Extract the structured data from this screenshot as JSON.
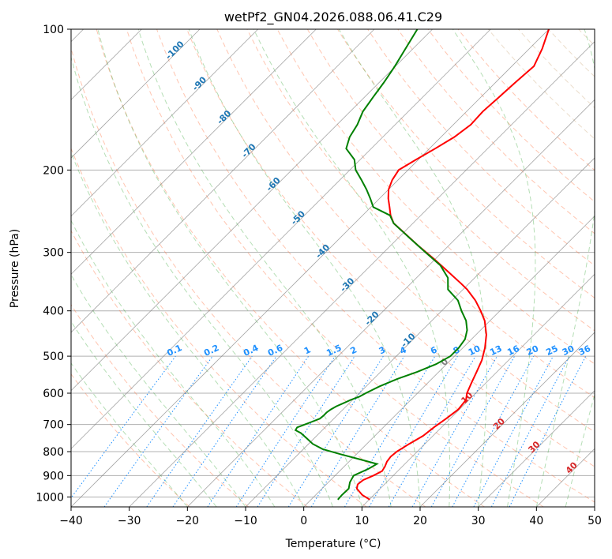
{
  "chart_data": {
    "type": "line",
    "title": "wetPf2_GN04.2026.088.06.41.C29",
    "xlabel": "Temperature (°C)",
    "ylabel": "Pressure (hPa)",
    "xlim": [
      -40,
      50
    ],
    "ylim": [
      1050,
      100
    ],
    "x_ticks": [
      -40,
      -30,
      -20,
      -10,
      0,
      10,
      20,
      30,
      40,
      50
    ],
    "x_tick_labels": [
      "−40",
      "−30",
      "−20",
      "−10",
      "0",
      "10",
      "20",
      "30",
      "40",
      "50"
    ],
    "y_ticks": [
      1000,
      900,
      800,
      700,
      600,
      500,
      400,
      300,
      200,
      100
    ],
    "y_tick_labels": [
      "1000",
      "900",
      "800",
      "700",
      "600",
      "500",
      "400",
      "300",
      "200",
      "100"
    ],
    "skew": 45,
    "colors": {
      "temperature": "#ff0000",
      "dewpoint": "#008000",
      "isotherm": "#7f7f7f",
      "dry_adiabat": "#ff7f50",
      "moist_adiabat": "#2ca02c",
      "mixing_ratio": "#1e90ff",
      "isotherm_label": "#1f77b4",
      "moist_label": "#d62728",
      "zero_label": "#7f7f7f"
    },
    "series": [
      {
        "name": "Temperature",
        "pressure": [
          1013,
          990,
          960,
          940,
          920,
          900,
          880,
          860,
          840,
          820,
          800,
          770,
          740,
          710,
          680,
          650,
          620,
          600,
          570,
          540,
          510,
          480,
          450,
          420,
          400,
          380,
          360,
          350,
          330,
          310,
          290,
          270,
          260,
          250,
          240,
          230,
          220,
          210,
          200,
          190,
          180,
          170,
          160,
          150,
          140,
          130,
          120,
          110,
          100
        ],
        "values": [
          10.1,
          8.0,
          6.0,
          5.4,
          5.6,
          6.6,
          7.3,
          7.0,
          6.5,
          6.3,
          6.5,
          7.3,
          8.3,
          8.7,
          9.3,
          9.8,
          9.5,
          8.5,
          7.5,
          6.5,
          5.4,
          3.8,
          1.8,
          -0.9,
          -3.3,
          -6.0,
          -9.3,
          -11.3,
          -15.6,
          -20.2,
          -25.3,
          -30.5,
          -33.3,
          -35.2,
          -36.8,
          -38.5,
          -40.0,
          -41.0,
          -41.6,
          -40.4,
          -39.0,
          -37.7,
          -37.0,
          -37.2,
          -36.9,
          -36.6,
          -36.2,
          -37.8,
          -40.0
        ]
      },
      {
        "name": "Dewpoint",
        "pressure": [
          1013,
          990,
          960,
          930,
          900,
          870,
          850,
          830,
          810,
          790,
          770,
          750,
          730,
          720,
          710,
          700,
          690,
          680,
          670,
          660,
          650,
          640,
          630,
          620,
          610,
          600,
          580,
          560,
          540,
          520,
          500,
          480,
          460,
          440,
          420,
          400,
          380,
          360,
          340,
          320,
          300,
          280,
          260,
          250,
          240,
          230,
          220,
          210,
          200,
          190,
          180,
          170,
          160,
          150,
          140,
          130,
          120,
          110,
          100
        ],
        "values": [
          4.6,
          4.5,
          4.6,
          3.7,
          3.2,
          4.6,
          5.2,
          1.3,
          -2.8,
          -6.7,
          -9.3,
          -11.2,
          -13.2,
          -14.6,
          -14.8,
          -14.0,
          -13.2,
          -12.4,
          -12.3,
          -12.3,
          -12.1,
          -11.7,
          -11.0,
          -10.3,
          -9.4,
          -8.9,
          -7.7,
          -6.0,
          -3.7,
          -1.8,
          -0.7,
          -0.7,
          -1.1,
          -2.3,
          -4.1,
          -6.6,
          -9.0,
          -12.6,
          -14.6,
          -18.0,
          -22.8,
          -27.9,
          -33.3,
          -35.3,
          -39.6,
          -41.6,
          -43.8,
          -46.3,
          -49.0,
          -51.0,
          -54.3,
          -55.7,
          -56.5,
          -57.8,
          -58.5,
          -59.2,
          -60.1,
          -61.3,
          -62.6
        ]
      }
    ],
    "isotherm_labels": [
      "-100",
      "-90",
      "-80",
      "-70",
      "-60",
      "-50",
      "-40",
      "-30",
      "-20",
      "-10",
      "0",
      "10",
      "20",
      "30",
      "40"
    ],
    "mixing_ratio_labels": [
      "0.1",
      "0.2",
      "0.4",
      "0.6",
      "1",
      "1.5",
      "2",
      "3",
      "4",
      "6",
      "8",
      "10",
      "13",
      "16",
      "20",
      "25",
      "30",
      "36"
    ]
  }
}
